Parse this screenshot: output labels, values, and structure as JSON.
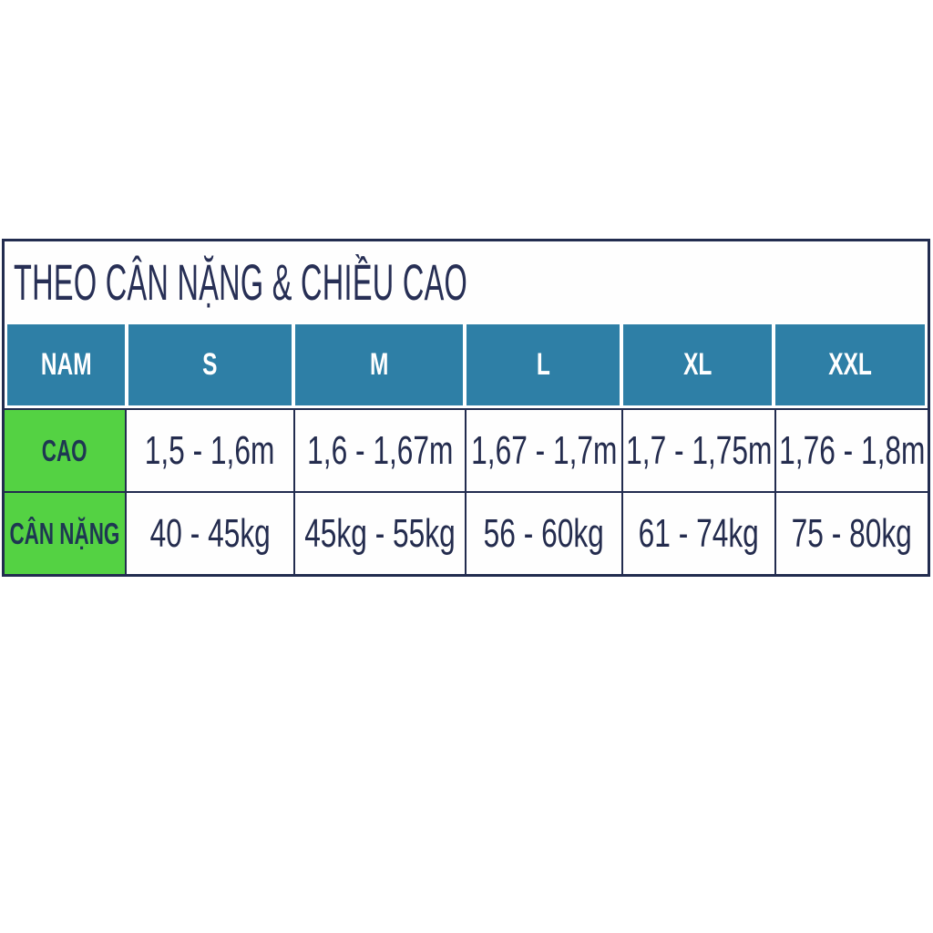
{
  "chart_data": {
    "type": "table",
    "title": "THEO CÂN NẶNG & CHIỀU CAO",
    "columns": [
      "NAM",
      "S",
      "M",
      "L",
      "XL",
      "XXL"
    ],
    "rows": [
      {
        "label": "CAO",
        "values": [
          "1,5 - 1,6m",
          "1,6 - 1,67m",
          "1,67 - 1,7m",
          "1,7 - 1,75m",
          "1,76 - 1,8m"
        ]
      },
      {
        "label": "CÂN NẶNG",
        "values": [
          "40 - 45kg",
          "45kg - 55kg",
          "56 - 60kg",
          "61 - 74kg",
          "75 - 80kg"
        ]
      }
    ]
  },
  "colors": {
    "header_teal": "#2e7fa6",
    "label_green": "#54d243",
    "border_navy": "#222c4f",
    "text_navy": "#242c4e",
    "header_text": "#ffffff",
    "background": "#ffffff"
  }
}
